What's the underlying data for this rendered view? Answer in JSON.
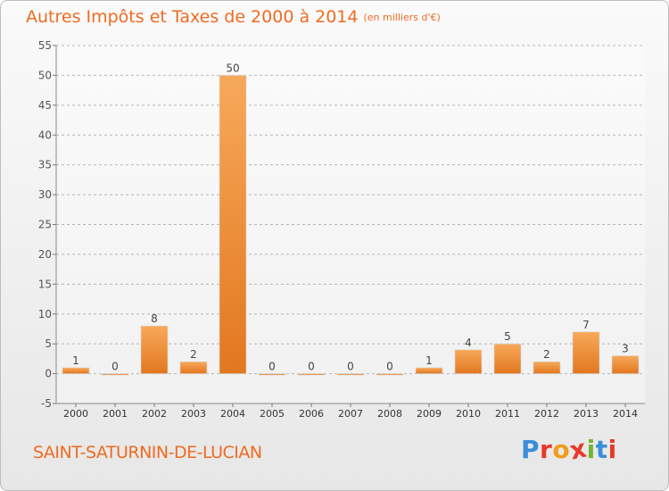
{
  "header": {
    "title": "Autres Impôts et Taxes de 2000 à 2014",
    "unit": "(en milliers d'€)"
  },
  "footer": {
    "commune": "SAINT-SATURNIN-DE-LUCIAN",
    "logo": "Proxiti",
    "logo_colors": [
      "#3b8ed8",
      "#e8392b",
      "#f29b1d",
      "#e8392b",
      "#73b532",
      "#3b8ed8",
      "#e8392b"
    ]
  },
  "colors": {
    "title": "#ef6b21",
    "bar_light": "#f7a95a",
    "bar_dark": "#e2771f",
    "grid": "#b5b5b5"
  },
  "chart_data": {
    "type": "bar",
    "title": "Autres Impôts et Taxes de 2000 à 2014",
    "subtitle": "(en milliers d'€)",
    "categories": [
      "2000",
      "2001",
      "2002",
      "2003",
      "2004",
      "2005",
      "2006",
      "2007",
      "2008",
      "2009",
      "2010",
      "2011",
      "2012",
      "2013",
      "2014"
    ],
    "values": [
      1,
      0,
      8,
      2,
      50,
      0,
      0,
      0,
      0,
      1,
      4,
      5,
      2,
      7,
      3
    ],
    "data_labels": [
      "1",
      "0",
      "8",
      "2",
      "50",
      "0",
      "0",
      "0",
      "0",
      "1",
      "4",
      "5",
      "2",
      "7",
      "3"
    ],
    "ylim": [
      -5,
      55
    ],
    "yticks": [
      -5,
      0,
      5,
      10,
      15,
      20,
      25,
      30,
      35,
      40,
      45,
      50,
      55
    ],
    "grid": true,
    "legend": "none"
  }
}
